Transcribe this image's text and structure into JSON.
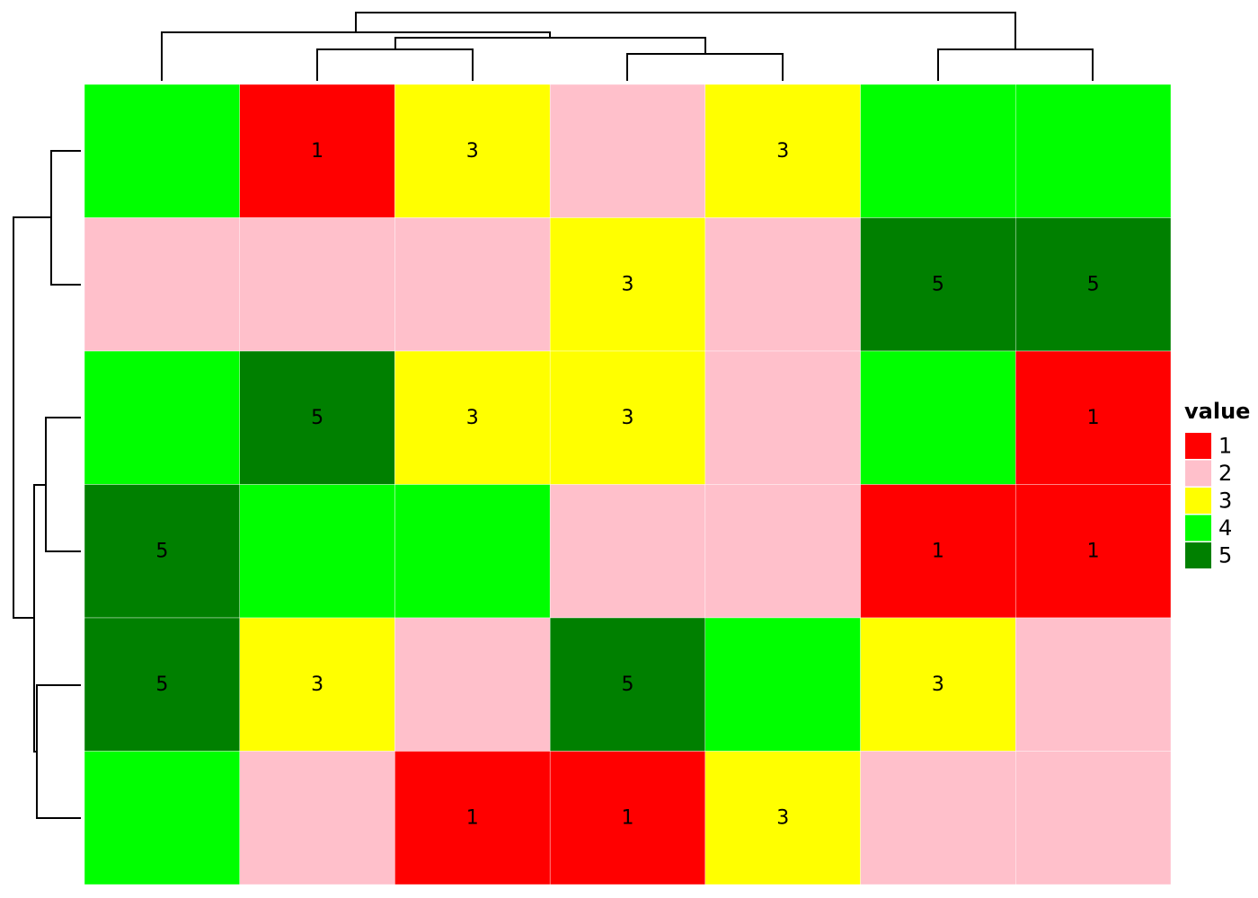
{
  "chart_data": {
    "type": "heatmap",
    "title": "",
    "xlabel": "",
    "ylabel": "",
    "values": [
      [
        4,
        1,
        3,
        2,
        3,
        4,
        4
      ],
      [
        2,
        2,
        2,
        3,
        2,
        5,
        5
      ],
      [
        4,
        5,
        3,
        3,
        2,
        4,
        1
      ],
      [
        5,
        4,
        4,
        2,
        2,
        1,
        1
      ],
      [
        5,
        3,
        2,
        5,
        4,
        3,
        2
      ],
      [
        4,
        2,
        1,
        1,
        3,
        2,
        2
      ]
    ],
    "cell_labels": [
      [
        "",
        "1",
        "3",
        "",
        "3",
        "",
        ""
      ],
      [
        "",
        "",
        "",
        "3",
        "",
        "5",
        "5"
      ],
      [
        "",
        "5",
        "3",
        "3",
        "",
        "",
        "1"
      ],
      [
        "5",
        "",
        "",
        "",
        "",
        "1",
        "1"
      ],
      [
        "5",
        "3",
        "",
        "5",
        "",
        "3",
        ""
      ],
      [
        "",
        "",
        "1",
        "1",
        "3",
        "",
        ""
      ]
    ],
    "color_map": {
      "1": "#FF0000",
      "2": "#FFC0CB",
      "3": "#FFFF00",
      "4": "#00FF00",
      "5": "#008000"
    },
    "legend": {
      "title": "value",
      "position": "right",
      "entries": [
        {
          "label": "1",
          "color": "#FF0000"
        },
        {
          "label": "2",
          "color": "#FFC0CB"
        },
        {
          "label": "3",
          "color": "#FFFF00"
        },
        {
          "label": "4",
          "color": "#00FF00"
        },
        {
          "label": "5",
          "color": "#008000"
        }
      ]
    },
    "column_dendrogram": "present",
    "row_dendrogram": "present",
    "grid": false
  }
}
